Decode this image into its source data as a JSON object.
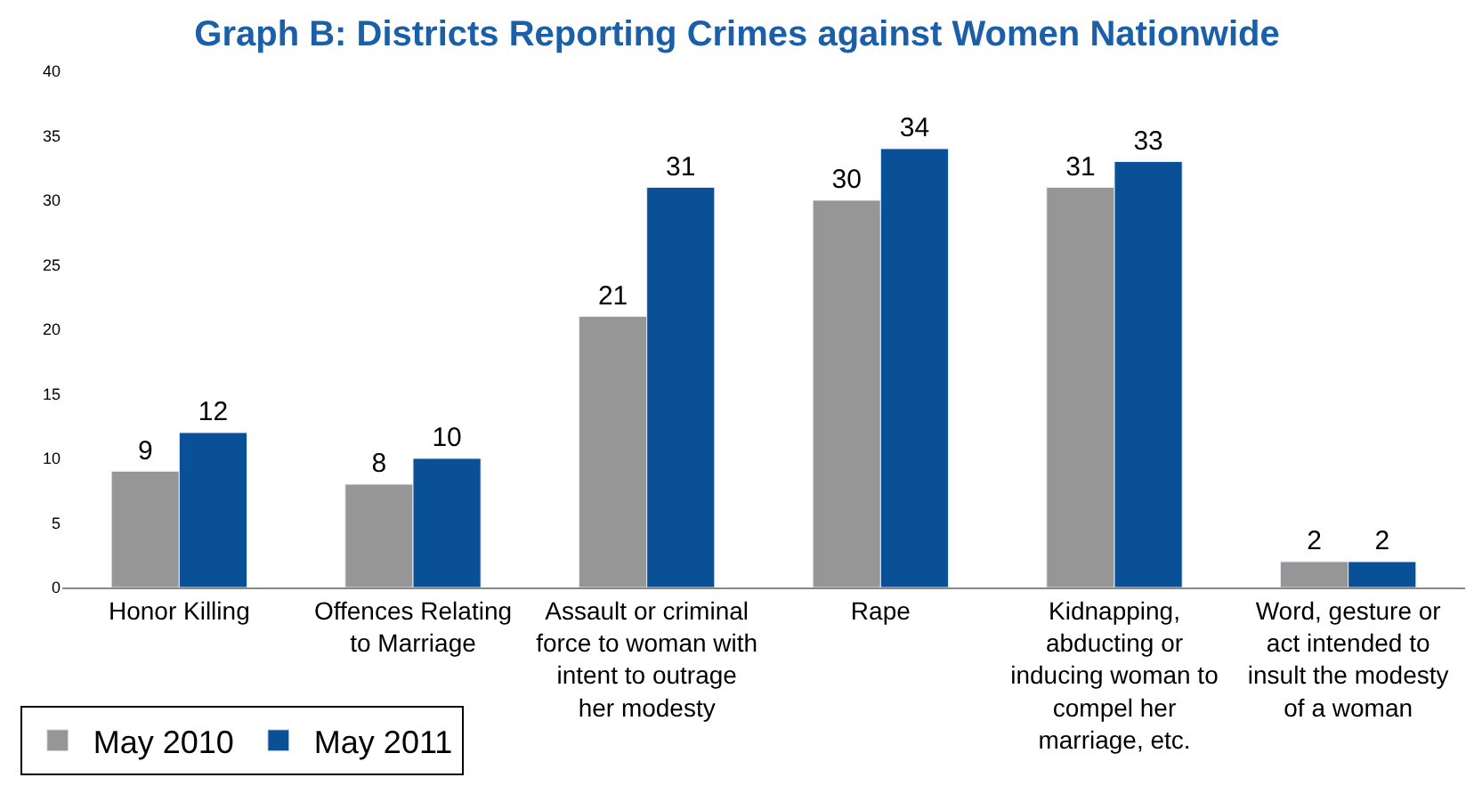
{
  "chart_data": {
    "type": "bar",
    "title": "Graph B: Districts Reporting Crimes against Women Nationwide",
    "categories": [
      "Honor Killing",
      "Offences Relating to Marriage",
      "Assault or criminal force to woman with intent to outrage her modesty",
      "Rape",
      "Kidnapping, abducting or inducing woman to compel her marriage, etc.",
      "Word, gesture or act intended to insult the modesty of a woman"
    ],
    "series": [
      {
        "name": "May 2010",
        "color": "#969696",
        "values": [
          9,
          8,
          21,
          30,
          31,
          2
        ]
      },
      {
        "name": "May 2011",
        "color": "#0a5096",
        "values": [
          12,
          10,
          31,
          34,
          33,
          2
        ]
      }
    ],
    "ylim": [
      0,
      40
    ],
    "yticks": [
      0,
      5,
      10,
      15,
      20,
      25,
      30,
      35,
      40
    ],
    "data_labels": true,
    "legend": "bottom left"
  }
}
